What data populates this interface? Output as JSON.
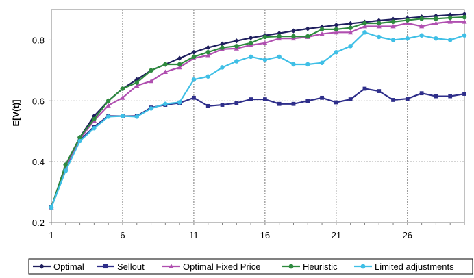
{
  "chart_data": {
    "type": "line",
    "title": "",
    "xlabel": "",
    "ylabel": "E[V(t)]",
    "xlim": [
      1,
      30
    ],
    "ylim": [
      0.2,
      0.9
    ],
    "x_ticks": [
      1,
      6,
      11,
      16,
      21,
      26
    ],
    "x_tick_labels": [
      "1",
      "6",
      "11",
      "16",
      "21",
      "26"
    ],
    "y_ticks": [
      0.2,
      0.4,
      0.6,
      0.8
    ],
    "y_tick_labels": [
      "0.2",
      "0.4",
      "0.6",
      "0.8"
    ],
    "grid": true,
    "legend_position": "bottom",
    "x": [
      1,
      2,
      3,
      4,
      5,
      6,
      7,
      8,
      9,
      10,
      11,
      12,
      13,
      14,
      15,
      16,
      17,
      18,
      19,
      20,
      21,
      22,
      23,
      24,
      25,
      26,
      27,
      28,
      29,
      30
    ],
    "series": [
      {
        "name": "Optimal",
        "color": "#1f1f5e",
        "marker": "diamond",
        "values": [
          0.25,
          0.39,
          0.48,
          0.55,
          0.6,
          0.64,
          0.67,
          0.7,
          0.72,
          0.74,
          0.76,
          0.775,
          0.787,
          0.797,
          0.807,
          0.815,
          0.822,
          0.83,
          0.837,
          0.843,
          0.849,
          0.854,
          0.859,
          0.864,
          0.868,
          0.872,
          0.876,
          0.879,
          0.882,
          0.885
        ]
      },
      {
        "name": "Sellout",
        "color": "#2e2e8a",
        "marker": "square",
        "values": [
          0.25,
          0.375,
          0.47,
          0.515,
          0.55,
          0.55,
          0.55,
          0.578,
          0.587,
          0.593,
          0.61,
          0.583,
          0.587,
          0.593,
          0.605,
          0.605,
          0.59,
          0.59,
          0.6,
          0.61,
          0.595,
          0.605,
          0.64,
          0.632,
          0.603,
          0.607,
          0.625,
          0.615,
          0.615,
          0.623
        ]
      },
      {
        "name": "Optimal Fixed Price",
        "color": "#b04fb0",
        "marker": "triangle",
        "values": [
          0.25,
          0.385,
          0.475,
          0.535,
          0.585,
          0.61,
          0.65,
          0.665,
          0.695,
          0.71,
          0.74,
          0.75,
          0.77,
          0.772,
          0.783,
          0.79,
          0.805,
          0.805,
          0.81,
          0.82,
          0.825,
          0.825,
          0.845,
          0.845,
          0.845,
          0.855,
          0.845,
          0.855,
          0.86,
          0.86
        ]
      },
      {
        "name": "Heuristic",
        "color": "#2e8a3e",
        "marker": "circle",
        "values": [
          0.25,
          0.39,
          0.48,
          0.54,
          0.6,
          0.64,
          0.66,
          0.7,
          0.72,
          0.72,
          0.745,
          0.76,
          0.775,
          0.78,
          0.79,
          0.81,
          0.812,
          0.812,
          0.812,
          0.835,
          0.835,
          0.84,
          0.855,
          0.855,
          0.86,
          0.865,
          0.87,
          0.87,
          0.873,
          0.875
        ]
      },
      {
        "name": "Limited adjustments",
        "color": "#3fbfe6",
        "marker": "circle",
        "values": [
          0.25,
          0.37,
          0.468,
          0.51,
          0.548,
          0.55,
          0.548,
          0.575,
          0.59,
          0.595,
          0.67,
          0.68,
          0.71,
          0.73,
          0.745,
          0.735,
          0.745,
          0.72,
          0.72,
          0.725,
          0.76,
          0.78,
          0.825,
          0.81,
          0.8,
          0.805,
          0.815,
          0.805,
          0.8,
          0.815
        ]
      }
    ]
  }
}
